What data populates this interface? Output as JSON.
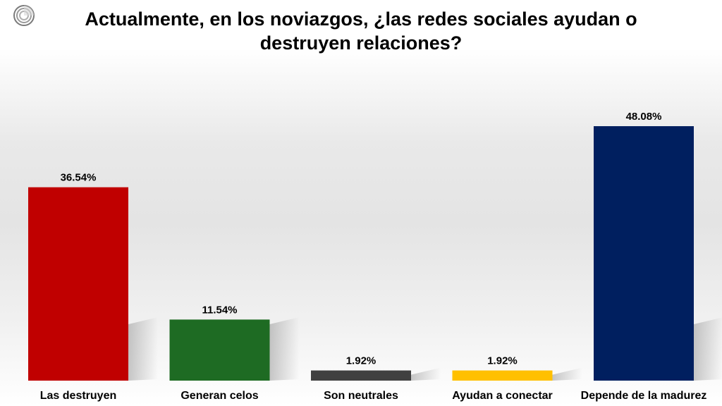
{
  "chart_data": {
    "type": "bar",
    "title": "Actualmente, en los noviazgos, ¿las redes sociales ayudan o destruyen relaciones?",
    "categories": [
      "Las destruyen",
      "Generan celos",
      "Son neutrales",
      "Ayudan a conectar",
      "Depende de la madurez"
    ],
    "values": [
      36.54,
      11.54,
      1.92,
      1.92,
      48.08
    ],
    "data_labels": [
      "36.54%",
      "11.54%",
      "1.92%",
      "1.92%",
      "48.08%"
    ],
    "colors": [
      "#c00000",
      "#1e6b23",
      "#404040",
      "#ffc000",
      "#001f5f"
    ],
    "ylim": [
      0,
      50
    ],
    "grid": false,
    "legend": "none"
  }
}
